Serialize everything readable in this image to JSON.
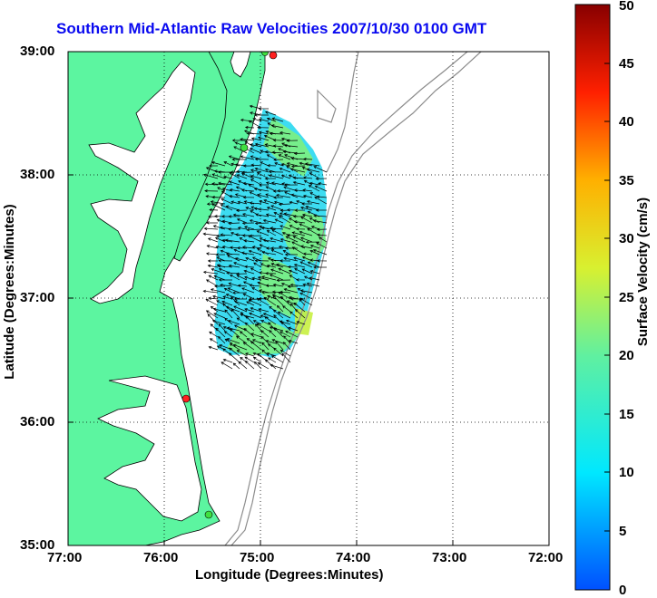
{
  "title": "Southern Mid-Atlantic Raw Velocities 2007/10/30 0100 GMT",
  "xlabel": "Longitude (Degrees:Minutes)",
  "ylabel": "Latitude (Degrees:Minutes)",
  "colorbar_label": "Surface Velocity (cm/s)",
  "x_ticks": [
    "77:00",
    "76:00",
    "75:00",
    "74:00",
    "73:00",
    "72:00"
  ],
  "y_ticks": [
    "39:00",
    "38:00",
    "37:00",
    "36:00",
    "35:00"
  ],
  "colorbar_ticks": [
    "0",
    "5",
    "10",
    "15",
    "20",
    "25",
    "30",
    "35",
    "40",
    "45",
    "50"
  ],
  "colors": {
    "land": "#5cf5a0",
    "title": "#0a0af0",
    "bathymetry": "#8c8c8c"
  },
  "chart_data": {
    "type": "map",
    "xlim": [
      -77,
      -72
    ],
    "ylim": [
      35,
      39
    ],
    "colorbar_range": [
      0,
      50
    ],
    "grid": true,
    "radar_sites": [
      {
        "lon": -74.85,
        "lat": 38.97,
        "color": "red"
      },
      {
        "lon": -75.15,
        "lat": 38.2,
        "color": "green"
      },
      {
        "lon": -75.75,
        "lat": 36.18,
        "color": "red"
      },
      {
        "lon": -75.5,
        "lat": 35.25,
        "color": "green"
      }
    ]
  }
}
